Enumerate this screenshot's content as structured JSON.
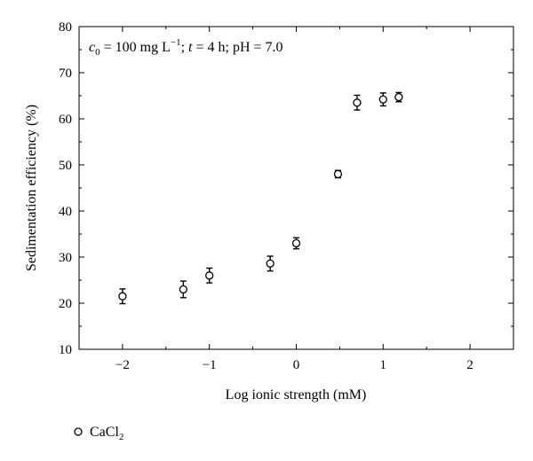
{
  "chart_data": {
    "type": "scatter",
    "annotation": {
      "c_symbol": "c",
      "c_sub": "0",
      "c_value": " = 100 mg L",
      "c_sup": "−1",
      "t_sep": "; ",
      "t_symbol": "t",
      "t_value": " = 4 h; pH = 7.0"
    },
    "xlabel": "Log ionic strength (mM)",
    "ylabel": "Sedimentation efficiency (%)",
    "xlim": [
      -2.5,
      2.5
    ],
    "ylim": [
      10,
      80
    ],
    "xticks": [
      -2,
      -1,
      0,
      1,
      2
    ],
    "xtick_labels": [
      "−2",
      "−1",
      "0",
      "1",
      "2"
    ],
    "yticks": [
      10,
      20,
      30,
      40,
      50,
      60,
      70,
      80
    ],
    "ytick_labels": [
      "10",
      "20",
      "30",
      "40",
      "50",
      "60",
      "70",
      "80"
    ],
    "legend": {
      "position": "bottom-left",
      "label_main": "CaCl",
      "label_sub": "2"
    },
    "series": [
      {
        "marker": "open-circle",
        "x": [
          -2.0,
          -1.3,
          -1.0,
          -0.3,
          0.0,
          0.48,
          0.7,
          1.0,
          1.18
        ],
        "y": [
          21.5,
          23.0,
          26.0,
          28.6,
          33.0,
          48.0,
          63.5,
          64.2,
          64.7
        ],
        "err": [
          1.6,
          1.8,
          1.6,
          1.6,
          1.2,
          0.8,
          1.6,
          1.4,
          1.0
        ]
      }
    ],
    "grid": false
  }
}
